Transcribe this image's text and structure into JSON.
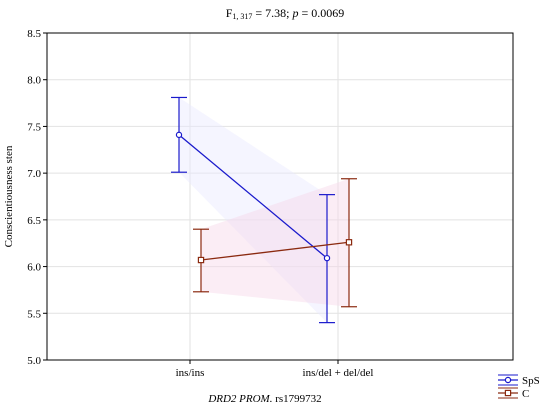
{
  "chart_data": {
    "type": "line",
    "title": {
      "f_letter": "F",
      "f_sub": "1, 317",
      "f_value": " = 7.38; ",
      "p_letter": "p",
      "p_value": " = 0.0069"
    },
    "xlabel": {
      "italic_part": "DRD2 PROM.",
      "rest": " rs1799732"
    },
    "ylabel": "Conscientiousness sten",
    "categories": [
      "ins/ins",
      "ins/del + del/del"
    ],
    "ylim": [
      5.0,
      8.5
    ],
    "yticks": [
      "5.0",
      "5.5",
      "6.0",
      "6.5",
      "7.0",
      "7.5",
      "8.0",
      "8.5"
    ],
    "grid": true,
    "legend_position": "bottom-right outside",
    "series": [
      {
        "name": "SpS",
        "color": "#1a1acc",
        "marker": "circle",
        "values": [
          7.41,
          6.09
        ],
        "lower": [
          7.01,
          5.4
        ],
        "upper": [
          7.81,
          6.77
        ]
      },
      {
        "name": "C",
        "color": "#8b2a10",
        "marker": "square",
        "values": [
          6.07,
          6.26
        ],
        "lower": [
          5.73,
          5.57
        ],
        "upper": [
          6.4,
          6.94
        ]
      }
    ]
  }
}
